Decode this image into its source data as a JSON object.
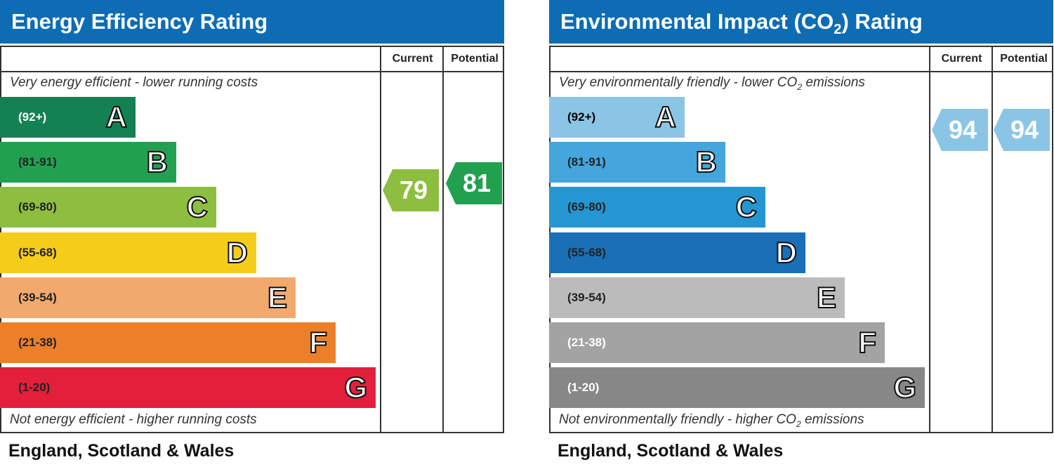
{
  "panels": [
    {
      "title": [
        "Energy Efficiency Rating"
      ],
      "headers": [
        "Current",
        "Potential"
      ],
      "top_note": [
        "Very energy efficient - lower running costs"
      ],
      "bands": [
        {
          "range": "(92+)",
          "letter": "A"
        },
        {
          "range": "(81-91)",
          "letter": "B"
        },
        {
          "range": "(69-80)",
          "letter": "C"
        },
        {
          "range": "(55-68)",
          "letter": "D"
        },
        {
          "range": "(39-54)",
          "letter": "E"
        },
        {
          "range": "(21-38)",
          "letter": "F"
        },
        {
          "range": "(1-20)",
          "letter": "G"
        }
      ],
      "bottom_note": [
        "Not energy efficient - higher running costs"
      ],
      "footer": "England, Scotland & Wales",
      "current": 79,
      "potential": 81
    },
    {
      "title": [
        "Environmental Impact (CO",
        "2",
        ") Rating"
      ],
      "headers": [
        "Current",
        "Potential"
      ],
      "top_note": [
        "Very environmentally friendly - lower CO",
        "2",
        " emissions"
      ],
      "bands": [
        {
          "range": "(92+)",
          "letter": "A"
        },
        {
          "range": "(81-91)",
          "letter": "B"
        },
        {
          "range": "(69-80)",
          "letter": "C"
        },
        {
          "range": "(55-68)",
          "letter": "D"
        },
        {
          "range": "(39-54)",
          "letter": "E"
        },
        {
          "range": "(21-38)",
          "letter": "F"
        },
        {
          "range": "(1-20)",
          "letter": "G"
        }
      ],
      "bottom_note": [
        "Not environmentally friendly - higher CO",
        "2",
        " emissions"
      ],
      "footer": "England, Scotland & Wales",
      "current": 94,
      "potential": 94
    }
  ]
}
